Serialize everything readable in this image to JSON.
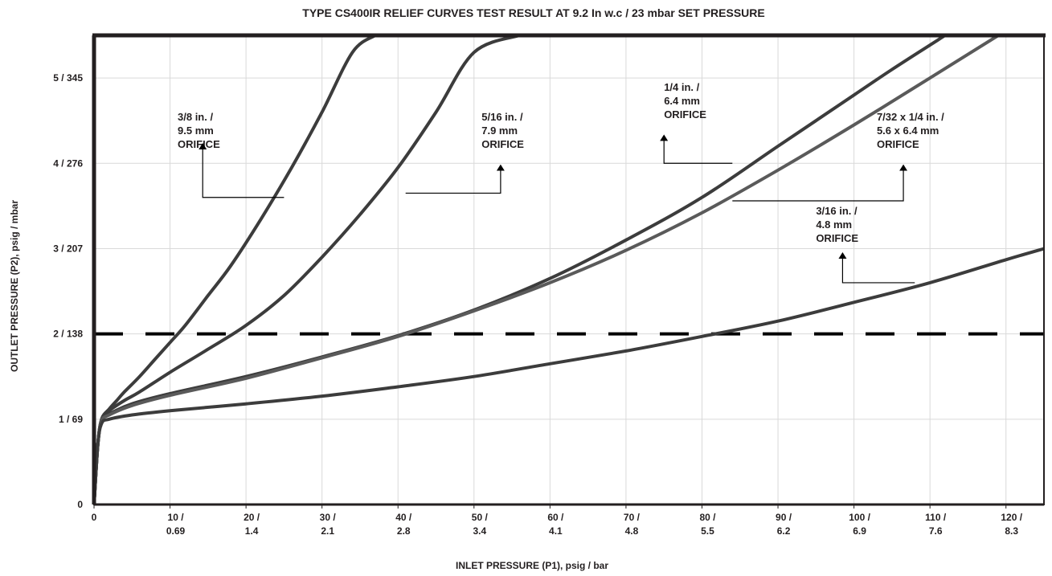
{
  "chart_data": {
    "type": "line",
    "title": "TYPE CS400IR RELIEF CURVES TEST RESULT AT 9.2 In w.c / 23 mbar SET PRESSURE",
    "xlabel": "INLET PRESSURE (P1), psig / bar",
    "ylabel": "OUTLET PRESSURE (P2), psig / mbar",
    "xlim": [
      0,
      125
    ],
    "ylim": [
      0,
      5.5
    ],
    "grid": true,
    "x_ticks": [
      {
        "value": 0,
        "line1": "0",
        "line2": ""
      },
      {
        "value": 10,
        "line1": "10 /",
        "line2": "0.69"
      },
      {
        "value": 20,
        "line1": "20 /",
        "line2": "1.4"
      },
      {
        "value": 30,
        "line1": "30 /",
        "line2": "2.1"
      },
      {
        "value": 40,
        "line1": "40 /",
        "line2": "2.8"
      },
      {
        "value": 50,
        "line1": "50 /",
        "line2": "3.4"
      },
      {
        "value": 60,
        "line1": "60 /",
        "line2": "4.1"
      },
      {
        "value": 70,
        "line1": "70 /",
        "line2": "4.8"
      },
      {
        "value": 80,
        "line1": "80 /",
        "line2": "5.5"
      },
      {
        "value": 90,
        "line1": "90 /",
        "line2": "6.2"
      },
      {
        "value": 100,
        "line1": "100 /",
        "line2": "6.9"
      },
      {
        "value": 110,
        "line1": "110 /",
        "line2": "7.6"
      },
      {
        "value": 120,
        "line1": "120 /",
        "line2": "8.3"
      }
    ],
    "y_ticks": [
      {
        "value": 0,
        "label": "0"
      },
      {
        "value": 1,
        "label": "1 / 69"
      },
      {
        "value": 2,
        "label": "2 / 138"
      },
      {
        "value": 3,
        "label": "3 / 207"
      },
      {
        "value": 4,
        "label": "4 / 276"
      },
      {
        "value": 5,
        "label": "5 / 345"
      }
    ],
    "reference_line": {
      "y": 2.0,
      "style": "dashed",
      "color": "#000000"
    },
    "series": [
      {
        "name": "3/8 in. / 9.5 mm ORIFICE",
        "label_lines": [
          "3/8 in. /",
          "9.5 mm",
          "ORIFICE"
        ],
        "color": "#3c3c3c",
        "points": [
          [
            0,
            0
          ],
          [
            0.5,
            0.7
          ],
          [
            1,
            1.0
          ],
          [
            2,
            1.12
          ],
          [
            3,
            1.22
          ],
          [
            4,
            1.32
          ],
          [
            6,
            1.5
          ],
          [
            8,
            1.7
          ],
          [
            10,
            1.9
          ],
          [
            12,
            2.1
          ],
          [
            15,
            2.45
          ],
          [
            18,
            2.8
          ],
          [
            22,
            3.35
          ],
          [
            26,
            3.95
          ],
          [
            30,
            4.6
          ],
          [
            34,
            5.3
          ],
          [
            37,
            5.5
          ]
        ]
      },
      {
        "name": "5/16 in. / 7.9 mm ORIFICE",
        "label_lines": [
          "5/16 in. /",
          "7.9 mm",
          "ORIFICE"
        ],
        "color": "#3c3c3c",
        "points": [
          [
            0,
            0
          ],
          [
            0.5,
            0.7
          ],
          [
            1,
            1.0
          ],
          [
            2,
            1.1
          ],
          [
            4,
            1.22
          ],
          [
            6,
            1.32
          ],
          [
            10,
            1.55
          ],
          [
            15,
            1.82
          ],
          [
            20,
            2.1
          ],
          [
            25,
            2.45
          ],
          [
            30,
            2.9
          ],
          [
            35,
            3.4
          ],
          [
            40,
            3.95
          ],
          [
            45,
            4.6
          ],
          [
            50,
            5.3
          ],
          [
            56,
            5.5
          ]
        ]
      },
      {
        "name": "1/4 in. / 6.4 mm ORIFICE",
        "label_lines": [
          "1/4 in. /",
          "6.4 mm",
          "ORIFICE"
        ],
        "color": "#3c3c3c",
        "points": [
          [
            0,
            0
          ],
          [
            0.5,
            0.7
          ],
          [
            1,
            0.98
          ],
          [
            2,
            1.06
          ],
          [
            5,
            1.18
          ],
          [
            10,
            1.3
          ],
          [
            20,
            1.5
          ],
          [
            30,
            1.73
          ],
          [
            40,
            1.98
          ],
          [
            50,
            2.28
          ],
          [
            60,
            2.65
          ],
          [
            70,
            3.1
          ],
          [
            80,
            3.6
          ],
          [
            90,
            4.2
          ],
          [
            100,
            4.8
          ],
          [
            105,
            5.1
          ],
          [
            112,
            5.5
          ]
        ]
      },
      {
        "name": "7/32 x 1/4 in. / 5.6 x 6.4 mm ORIFICE",
        "label_lines": [
          "7/32 x 1/4 in. /",
          "5.6 x 6.4 mm",
          "ORIFICE"
        ],
        "color": "#5a5a5a",
        "points": [
          [
            0,
            0
          ],
          [
            0.5,
            0.7
          ],
          [
            1,
            0.98
          ],
          [
            2,
            1.05
          ],
          [
            5,
            1.16
          ],
          [
            10,
            1.28
          ],
          [
            20,
            1.48
          ],
          [
            30,
            1.72
          ],
          [
            40,
            1.97
          ],
          [
            50,
            2.27
          ],
          [
            60,
            2.6
          ],
          [
            70,
            2.98
          ],
          [
            80,
            3.42
          ],
          [
            90,
            3.92
          ],
          [
            100,
            4.45
          ],
          [
            110,
            5.0
          ],
          [
            119,
            5.5
          ]
        ]
      },
      {
        "name": "3/16 in. / 4.8 mm ORIFICE",
        "label_lines": [
          "3/16 in. /",
          "4.8 mm",
          "ORIFICE"
        ],
        "color": "#3c3c3c",
        "points": [
          [
            0,
            0
          ],
          [
            0.5,
            0.7
          ],
          [
            1,
            0.95
          ],
          [
            2,
            1.0
          ],
          [
            5,
            1.05
          ],
          [
            10,
            1.1
          ],
          [
            20,
            1.18
          ],
          [
            30,
            1.27
          ],
          [
            40,
            1.38
          ],
          [
            50,
            1.5
          ],
          [
            60,
            1.65
          ],
          [
            70,
            1.8
          ],
          [
            80,
            1.97
          ],
          [
            90,
            2.15
          ],
          [
            100,
            2.37
          ],
          [
            110,
            2.6
          ],
          [
            120,
            2.87
          ],
          [
            125,
            3.0
          ]
        ]
      }
    ],
    "annotations": [
      {
        "series": 0,
        "text_x": 11,
        "text_y": 4.5,
        "arrow_tip": [
          14.3,
          4.2
        ],
        "elbow": [
          14.3,
          3.6
        ],
        "target": [
          25,
          3.6
        ]
      },
      {
        "series": 1,
        "text_x": 51,
        "text_y": 4.5,
        "arrow_tip": [
          53.5,
          3.95
        ],
        "elbow": [
          53.5,
          3.65
        ],
        "target": [
          41,
          3.65
        ]
      },
      {
        "series": 2,
        "text_x": 75,
        "text_y": 4.85,
        "arrow_tip": [
          75,
          4.3
        ],
        "elbow": [
          75,
          4.0
        ],
        "target": [
          84,
          4.0
        ]
      },
      {
        "series": 3,
        "text_x": 103,
        "text_y": 4.5,
        "arrow_tip": [
          106.5,
          3.95
        ],
        "elbow": [
          106.5,
          3.56
        ],
        "target": [
          84,
          3.56
        ]
      },
      {
        "series": 4,
        "text_x": 95,
        "text_y": 3.4,
        "arrow_tip": [
          98.5,
          2.92
        ],
        "elbow": [
          98.5,
          2.6
        ],
        "target": [
          108,
          2.6
        ]
      }
    ]
  }
}
